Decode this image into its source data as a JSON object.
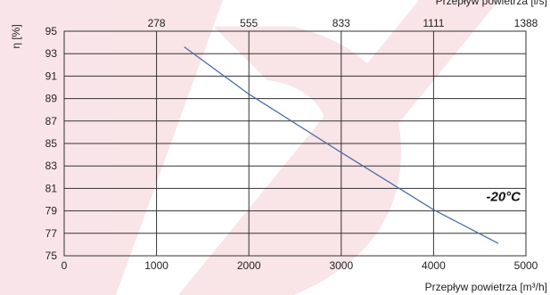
{
  "chart_data": {
    "type": "line",
    "ylabel": "η [%]",
    "xlabel": "Przepływ powietrza [m³/h]",
    "x2label": "Przepływ powietrza [l/s]",
    "xlim": [
      0,
      5000
    ],
    "ylim": [
      75,
      95
    ],
    "x_ticks": [
      0,
      1000,
      2000,
      3000,
      4000,
      5000
    ],
    "y_ticks": [
      75,
      77,
      79,
      81,
      83,
      85,
      87,
      89,
      91,
      93,
      95
    ],
    "x2_ticks": [
      {
        "label": "278",
        "at": 1000
      },
      {
        "label": "555",
        "at": 2000
      },
      {
        "label": "833",
        "at": 3000
      },
      {
        "label": "1111",
        "at": 4000
      },
      {
        "label": "1388",
        "at": 5000
      }
    ],
    "grid": true,
    "series": [
      {
        "name": "-20°C",
        "color": "#4a6fa5",
        "x": [
          1300,
          2000,
          3000,
          4000,
          4700
        ],
        "y": [
          93.6,
          89.4,
          84.2,
          79.1,
          76.1
        ]
      }
    ]
  },
  "colors": {
    "background_watermark": "#cc1133"
  }
}
